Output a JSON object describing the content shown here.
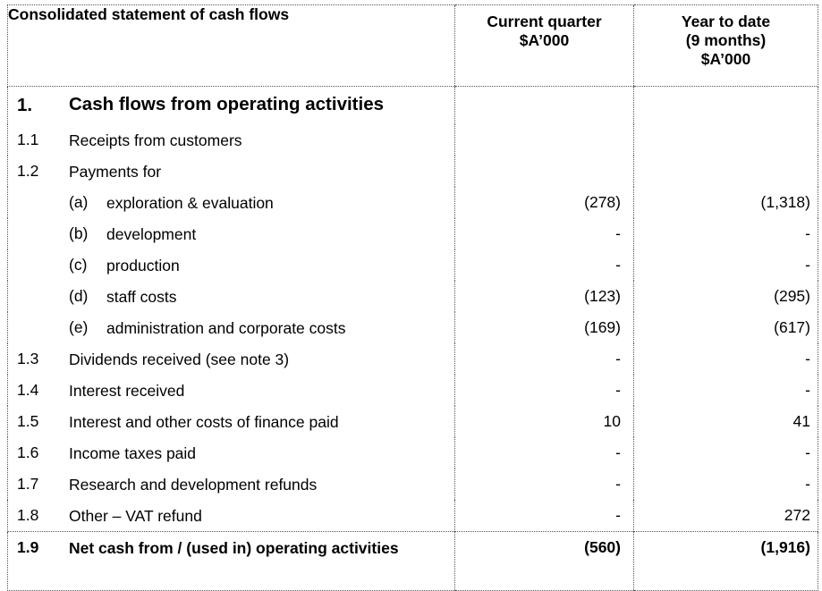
{
  "header": {
    "title": "Consolidated statement of cash flows",
    "current_quarter": [
      "Current quarter",
      "$A’000"
    ],
    "year_to_date": [
      "Year to date",
      "(9 months)",
      "$A’000"
    ]
  },
  "section": {
    "number": "1.",
    "title": "Cash flows from operating activities"
  },
  "rows": [
    {
      "num": "1.1",
      "label": "Receipts from customers",
      "current": "",
      "ytd": ""
    },
    {
      "num": "1.2",
      "label": "Payments for",
      "current": "",
      "ytd": ""
    },
    {
      "sub": "(a)",
      "label": "exploration & evaluation",
      "current": "(278)",
      "ytd": "(1,318)"
    },
    {
      "sub": "(b)",
      "label": "development",
      "current": "-",
      "ytd": "-"
    },
    {
      "sub": "(c)",
      "label": "production",
      "current": "-",
      "ytd": "-"
    },
    {
      "sub": "(d)",
      "label": "staff costs",
      "current": "(123)",
      "ytd": "(295)"
    },
    {
      "sub": "(e)",
      "label": "administration and corporate costs",
      "current": "(169)",
      "ytd": "(617)"
    },
    {
      "num": "1.3",
      "label": "Dividends received (see note 3)",
      "current": "-",
      "ytd": "-"
    },
    {
      "num": "1.4",
      "label": "Interest received",
      "current": "-",
      "ytd": "-"
    },
    {
      "num": "1.5",
      "label": "Interest and other costs of finance paid",
      "current": "10",
      "ytd": "41"
    },
    {
      "num": "1.6",
      "label": "Income taxes paid",
      "current": "-",
      "ytd": "-"
    },
    {
      "num": "1.7",
      "label": "Research and development refunds",
      "current": "-",
      "ytd": "-"
    },
    {
      "num": "1.8",
      "label": "Other – VAT refund",
      "current": "-",
      "ytd": "272"
    }
  ],
  "total": {
    "num": "1.9",
    "label": "Net cash from / (used in) operating activities",
    "current": "(560)",
    "ytd": "(1,916)"
  }
}
